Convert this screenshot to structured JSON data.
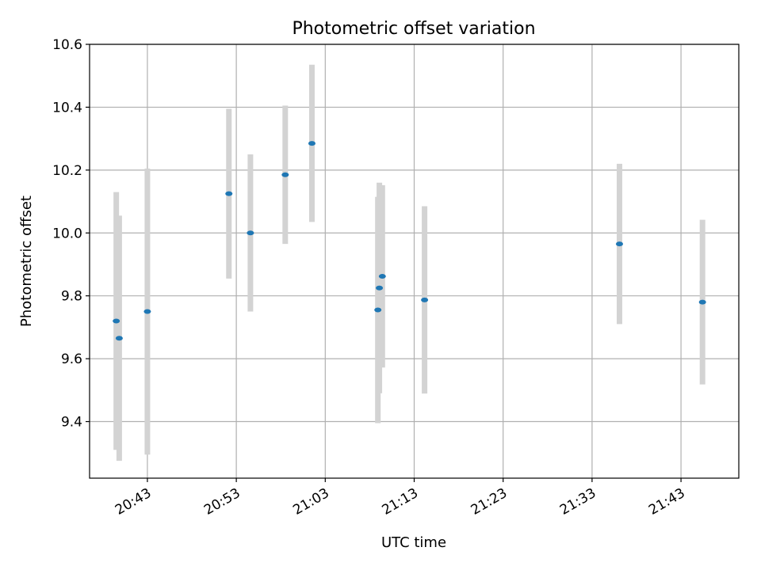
{
  "chart_data": {
    "type": "scatter",
    "title": "Photometric offset variation",
    "xlabel": "UTC time",
    "ylabel": "Photometric offset",
    "ylim": [
      9.22,
      10.6
    ],
    "xlim": [
      "20:36:30",
      "21:49:30"
    ],
    "yticks": [
      "9.4",
      "9.6",
      "9.8",
      "10.0",
      "10.2",
      "10.4",
      "10.6"
    ],
    "xticks": [
      "20:43",
      "20:53",
      "21:03",
      "21:13",
      "21:23",
      "21:33",
      "21:43"
    ],
    "grid": true,
    "errorbar_color": "#d3d3d3",
    "marker_color": "#1f77b4",
    "points": [
      {
        "t": "20:39:30",
        "y": 9.72,
        "yerr": 0.41
      },
      {
        "t": "20:39:50",
        "y": 9.665,
        "yerr": 0.39
      },
      {
        "t": "20:43:00",
        "y": 9.75,
        "yerr": 0.455
      },
      {
        "t": "20:52:10",
        "y": 10.125,
        "yerr": 0.27
      },
      {
        "t": "20:54:35",
        "y": 10.0,
        "yerr": 0.25
      },
      {
        "t": "20:58:30",
        "y": 10.185,
        "yerr": 0.22
      },
      {
        "t": "21:01:30",
        "y": 10.285,
        "yerr": 0.25
      },
      {
        "t": "21:08:55",
        "y": 9.755,
        "yerr": 0.36
      },
      {
        "t": "21:09:05",
        "y": 9.825,
        "yerr": 0.335
      },
      {
        "t": "21:09:25",
        "y": 9.862,
        "yerr": 0.29
      },
      {
        "t": "21:14:10",
        "y": 9.787,
        "yerr": 0.298
      },
      {
        "t": "21:36:05",
        "y": 9.965,
        "yerr": 0.255
      },
      {
        "t": "21:45:25",
        "y": 9.78,
        "yerr": 0.262
      }
    ]
  }
}
